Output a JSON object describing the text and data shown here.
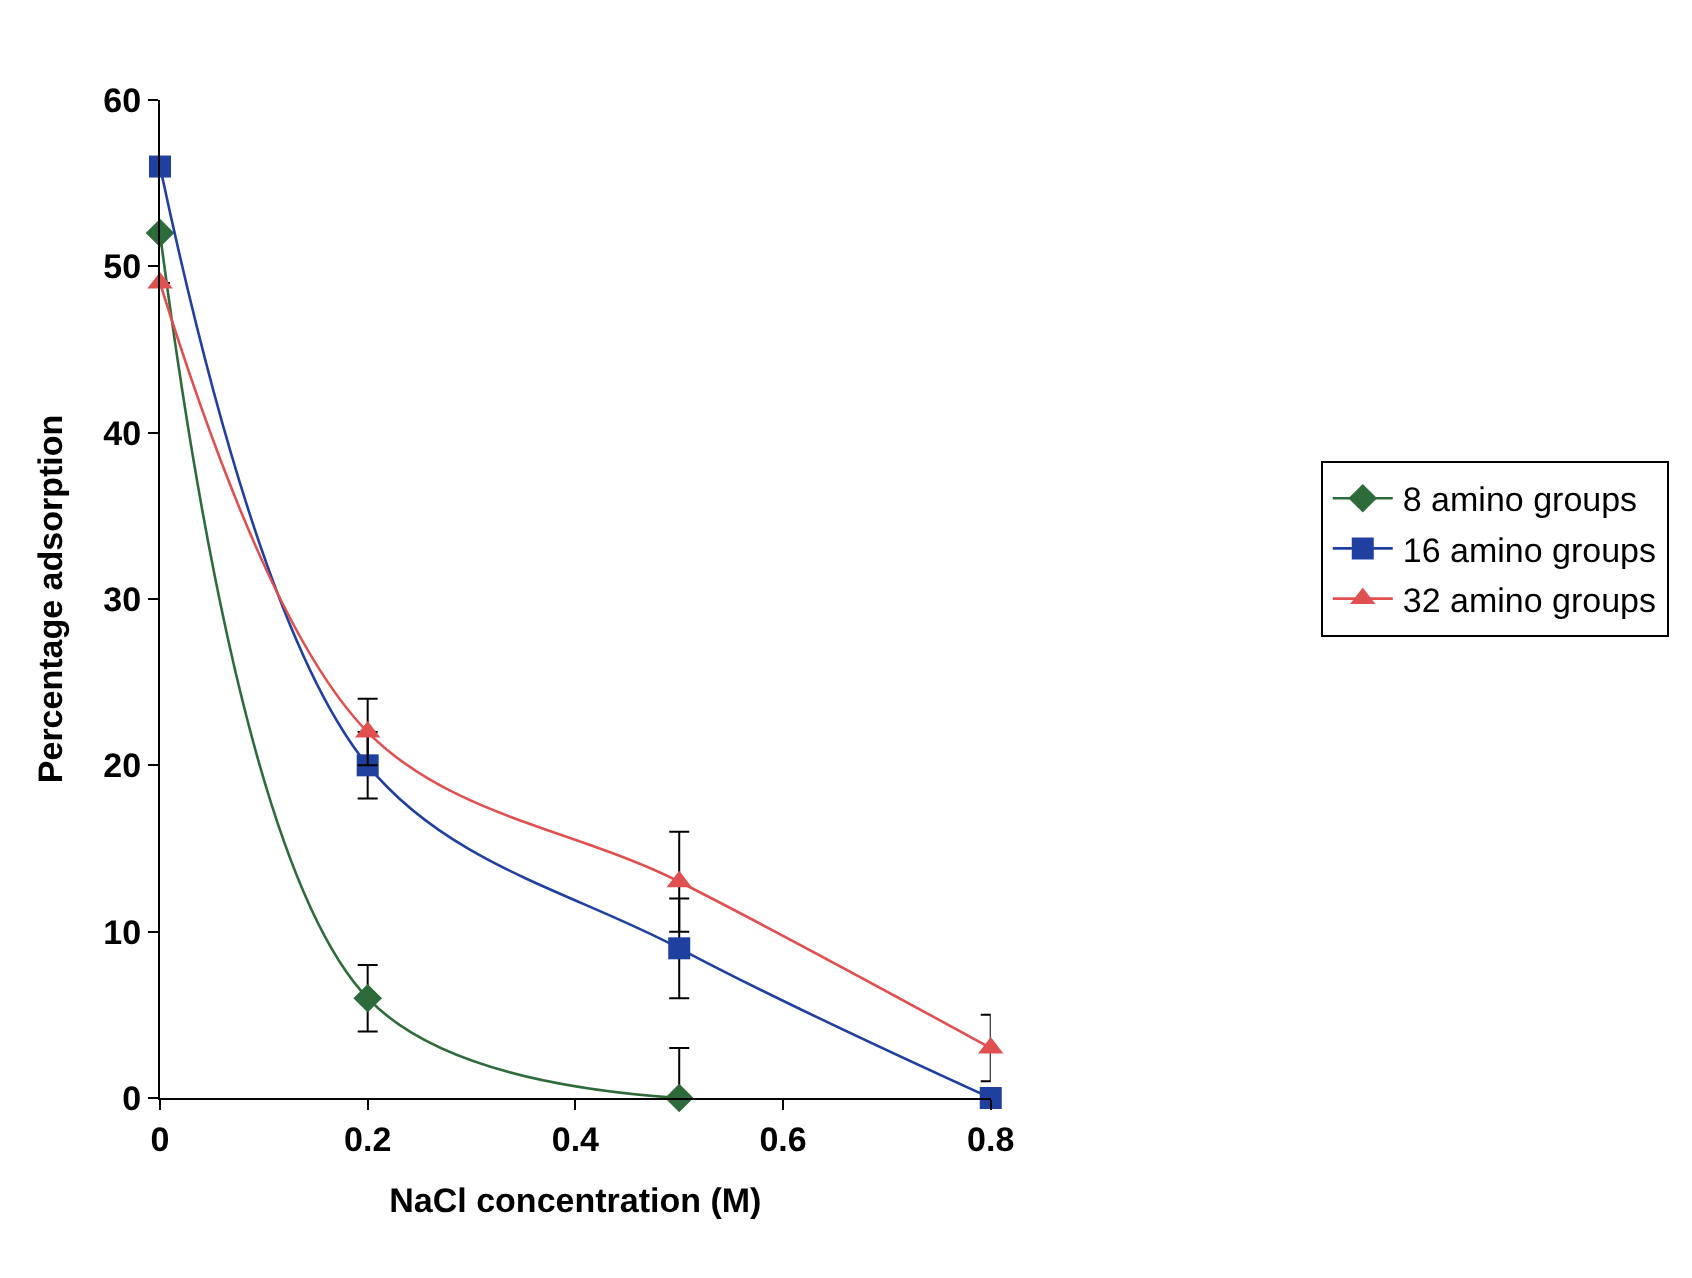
{
  "chart_data": {
    "type": "line",
    "xlabel": "NaCl concentration (M)",
    "ylabel": "Percentage adsorption",
    "x": [
      0,
      0.2,
      0.5,
      0.8
    ],
    "series": [
      {
        "name": "8 amino groups",
        "color": "#2e6b3a",
        "marker": "diamond",
        "values": [
          52,
          6,
          0,
          null
        ],
        "errors": [
          null,
          2,
          [
            0,
            3
          ],
          null
        ]
      },
      {
        "name": "16 amino groups",
        "color": "#2040a0",
        "marker": "square",
        "values": [
          56,
          20,
          9,
          0
        ],
        "errors": [
          null,
          2,
          3,
          null
        ]
      },
      {
        "name": "32 amino groups",
        "color": "#e05050",
        "marker": "triangle",
        "values": [
          49,
          22,
          13,
          3
        ],
        "errors": [
          null,
          2,
          3,
          2
        ]
      }
    ],
    "xlim": [
      0,
      0.8
    ],
    "xticks": [
      0,
      0.2,
      0.4,
      0.6,
      0.8
    ],
    "ylim": [
      0,
      60
    ],
    "yticks": [
      0,
      10,
      20,
      30,
      40,
      50,
      60
    ],
    "grid": false,
    "legend": "right",
    "line_style": "solid"
  }
}
